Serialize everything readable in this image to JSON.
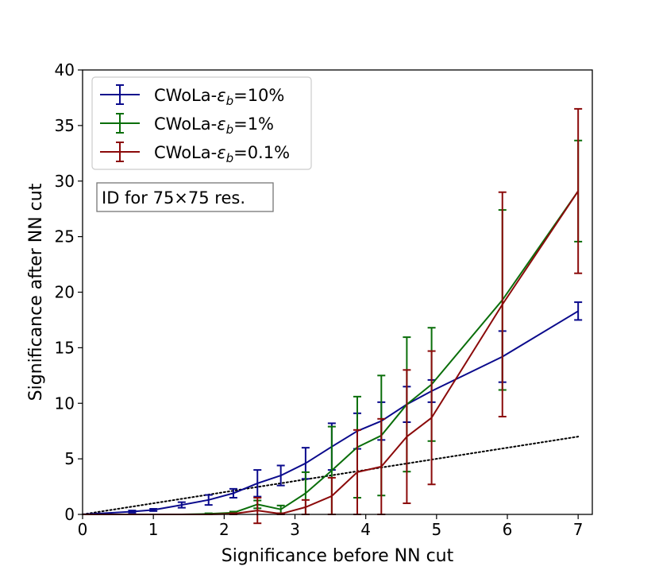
{
  "chart_data": {
    "type": "line",
    "xlabel": "Significance before NN cut",
    "ylabel": "Significance after NN cut",
    "xlim": [
      0,
      7.2
    ],
    "ylim": [
      0,
      40
    ],
    "xticks": [
      0,
      1,
      2,
      3,
      4,
      5,
      6,
      7
    ],
    "yticks": [
      0,
      5,
      10,
      15,
      20,
      25,
      30,
      35,
      40
    ],
    "annotation": "ID for 75×75 res.",
    "legend_position": "upper-left",
    "reference_line": {
      "style": "dotted",
      "color": "#000000",
      "x": [
        0,
        7
      ],
      "y": [
        0,
        7
      ]
    },
    "series": [
      {
        "name": "CWoLa-εb=10%",
        "legend_prefix": "CWoLa-",
        "legend_symbol": "ε",
        "legend_sub": "b",
        "legend_suffix": "=10%",
        "color": "#0a0a8c",
        "x": [
          0,
          0.7,
          1.0,
          1.4,
          1.78,
          2.13,
          2.47,
          2.8,
          3.15,
          3.52,
          3.88,
          4.22,
          4.58,
          4.93,
          5.93,
          7.0
        ],
        "y": [
          0,
          0.25,
          0.4,
          0.85,
          1.3,
          1.9,
          2.8,
          3.5,
          4.6,
          6.1,
          7.5,
          8.4,
          9.9,
          11.1,
          14.2,
          18.3
        ],
        "err": [
          0,
          0.1,
          0.1,
          0.25,
          0.45,
          0.4,
          1.2,
          0.9,
          1.4,
          2.1,
          1.6,
          1.7,
          1.6,
          1.0,
          2.3,
          0.8
        ]
      },
      {
        "name": "CWoLa-εb=1%",
        "legend_prefix": "CWoLa-",
        "legend_symbol": "ε",
        "legend_sub": "b",
        "legend_suffix": "=1%",
        "color": "#0a6e0a",
        "x": [
          0,
          0.7,
          1.0,
          1.4,
          1.78,
          2.13,
          2.47,
          2.8,
          3.15,
          3.52,
          3.88,
          4.22,
          4.58,
          4.93,
          5.93,
          7.0
        ],
        "y": [
          0,
          0,
          0,
          0,
          0.05,
          0.15,
          0.9,
          0.45,
          1.9,
          3.95,
          6.05,
          7.1,
          9.9,
          11.7,
          19.3,
          29.1
        ],
        "err": [
          0,
          0,
          0,
          0,
          0.05,
          0.1,
          0.35,
          0.35,
          1.9,
          3.95,
          4.55,
          5.4,
          6.05,
          5.1,
          8.1,
          4.55
        ]
      },
      {
        "name": "CWoLa-εb=0.1%",
        "legend_prefix": "CWoLa-",
        "legend_symbol": "ε",
        "legend_sub": "b",
        "legend_suffix": "=0.1%",
        "color": "#8b0a0a",
        "x": [
          0,
          0.7,
          1.0,
          1.4,
          1.78,
          2.13,
          2.47,
          2.8,
          3.15,
          3.52,
          3.88,
          4.22,
          4.58,
          4.93,
          5.93,
          7.0
        ],
        "y": [
          0,
          0,
          0,
          0,
          0,
          0.05,
          0.35,
          0.05,
          0.65,
          1.65,
          3.8,
          4.3,
          7.0,
          8.7,
          18.9,
          29.1
        ],
        "err": [
          0,
          0,
          0,
          0,
          0,
          0.05,
          1.15,
          0.05,
          0.65,
          1.65,
          3.8,
          4.3,
          6.0,
          6.0,
          10.1,
          7.4
        ]
      }
    ]
  }
}
